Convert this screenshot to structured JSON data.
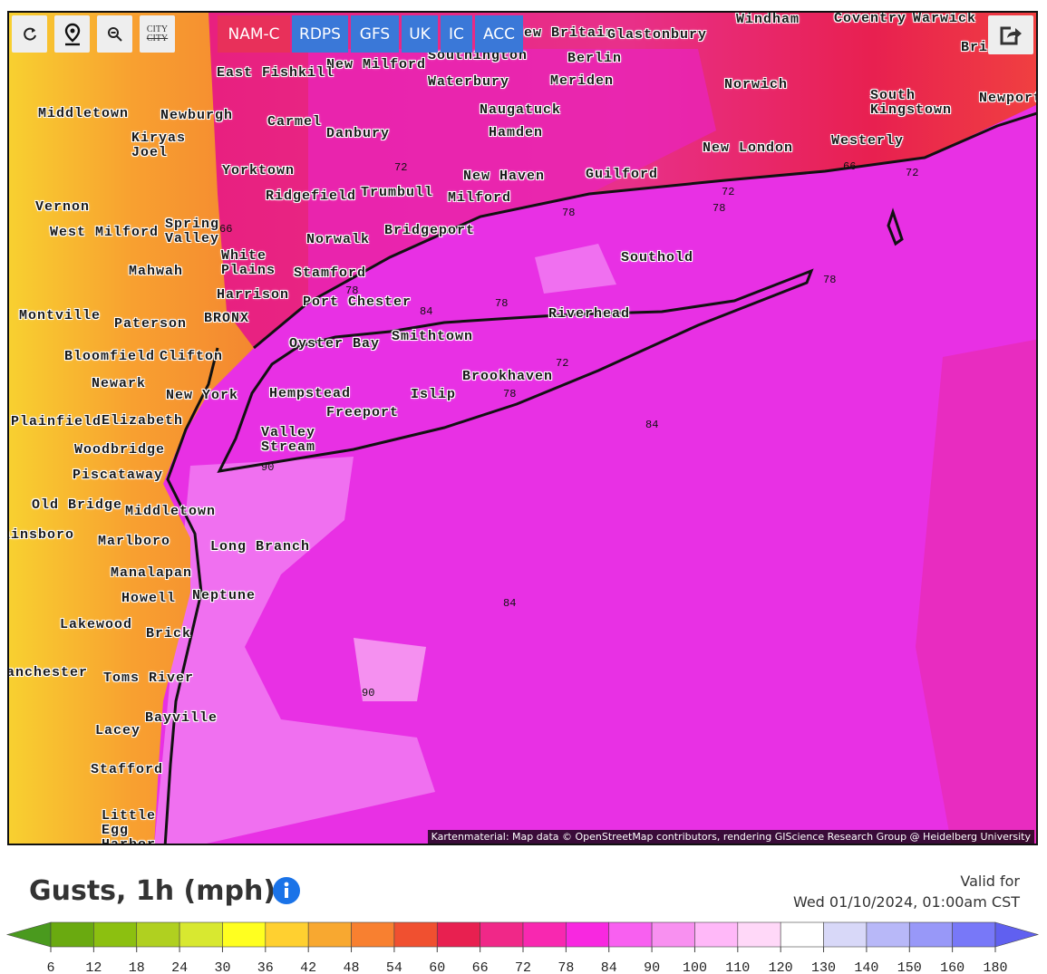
{
  "toolbar": {
    "city_toggle": [
      "CITY",
      "CITY"
    ]
  },
  "models": {
    "items": [
      "NAM-C",
      "RDPS",
      "GFS",
      "UK",
      "IC",
      "ACC"
    ],
    "active": 0,
    "active_color": "#e8305a",
    "color": "#3a78d8"
  },
  "map": {
    "places": [
      "Windham",
      "Coventry",
      "Warwick",
      "New Britain",
      "Glastonbury",
      "Berlin",
      "Southington",
      "Waterbury",
      "Meriden",
      "Naugatuck",
      "Hamden",
      "New Milford",
      "East Fishkill",
      "Middletown",
      "Newburgh",
      "Carmel",
      "Danbury",
      "Kiryas Joel",
      "Norwich",
      "South Kingstown",
      "Newport",
      "Westerly",
      "New London",
      "Guilford",
      "New Haven",
      "Milford",
      "Trumbull",
      "Ridgefield",
      "Yorktown",
      "Bridgeport",
      "Norwalk",
      "Vernon",
      "West Milford",
      "Spring Valley",
      "White Plains",
      "Mahwah",
      "Stamford",
      "Harrison",
      "Port Chester",
      "Southold",
      "Riverhead",
      "Montville",
      "Paterson",
      "BRONX",
      "Oyster Bay",
      "Smithtown",
      "Bloomfield",
      "Clifton",
      "Brookhaven",
      "Newark",
      "New York",
      "Hempstead",
      "Islip",
      "Freeport",
      "Plainfield",
      "Elizabeth",
      "Valley Stream",
      "Woodbridge",
      "Piscataway",
      "Old Bridge",
      "Middletown",
      "Plainsboro",
      "Marlboro",
      "Long Branch",
      "Manalapan",
      "Howell",
      "Neptune",
      "Lakewood",
      "Brick",
      "Manchester",
      "Toms River",
      "Bayville",
      "Lacey",
      "Stafford",
      "Little Egg Harbor",
      "Bristol"
    ],
    "contours": [
      72,
      66,
      78,
      72,
      78,
      72,
      66,
      78,
      84,
      78,
      78,
      72,
      78,
      84,
      90,
      84,
      90
    ],
    "attribution": "Kartenmaterial: Map data © OpenStreetMap contributors, rendering GIScience Research Group @ Heidelberg University"
  },
  "legend": {
    "title": "Gusts, 1h (mph)",
    "valid_label": "Valid for",
    "valid_time": "Wed 01/10/2024, 01:00am CST",
    "ticks": [
      6,
      12,
      18,
      24,
      30,
      36,
      42,
      48,
      54,
      60,
      66,
      72,
      78,
      84,
      90,
      100,
      110,
      120,
      130,
      140,
      150,
      160,
      180
    ],
    "colors": [
      "#4a9a1e",
      "#6aaa10",
      "#8cc010",
      "#b0d020",
      "#d8e830",
      "#ffff20",
      "#ffd030",
      "#f8a830",
      "#f88030",
      "#f05030",
      "#e82050",
      "#f02888",
      "#f828b0",
      "#f828e0",
      "#f860f0",
      "#f890f0",
      "#ffb8f8",
      "#ffd8f8",
      "#ffffff",
      "#d8d8f8",
      "#b8b8f8",
      "#9898f8",
      "#7878f8",
      "#6060f0"
    ]
  }
}
